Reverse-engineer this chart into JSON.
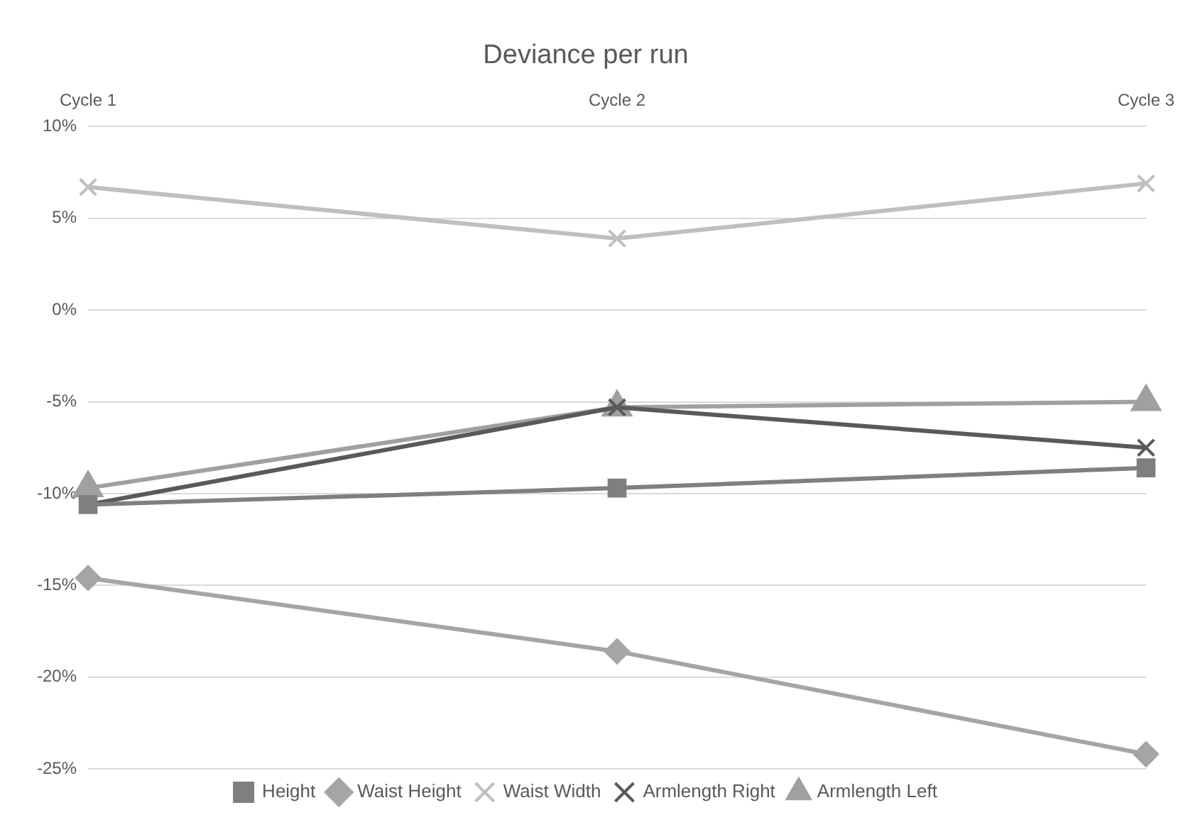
{
  "chart_data": {
    "type": "line",
    "title": "Deviance per run",
    "categories": [
      "Cycle 1",
      "Cycle 2",
      "Cycle 3"
    ],
    "series": [
      {
        "name": "Height",
        "color": "#7f7f7f",
        "marker": "square",
        "values": [
          -10.6,
          -9.7,
          -8.6
        ]
      },
      {
        "name": "Waist Height",
        "color": "#a5a5a5",
        "marker": "diamond",
        "values": [
          -14.6,
          -18.6,
          -24.2
        ]
      },
      {
        "name": "Waist Width",
        "color": "#bfbfbf",
        "marker": "cross",
        "values": [
          6.7,
          3.9,
          6.9
        ]
      },
      {
        "name": "Armlength Right",
        "color": "#595959",
        "marker": "cross",
        "values": [
          -10.6,
          -5.3,
          -7.5
        ]
      },
      {
        "name": "Armlength Left",
        "color": "#a0a0a0",
        "marker": "triangle",
        "values": [
          -9.7,
          -5.3,
          -5.0
        ]
      }
    ],
    "ylim": [
      -25,
      10
    ],
    "yticks": [
      {
        "value": -25,
        "label": "-25%"
      },
      {
        "value": -20,
        "label": "-20%"
      },
      {
        "value": -15,
        "label": "-15%"
      },
      {
        "value": -10,
        "label": "-10%"
      },
      {
        "value": -5,
        "label": "-5%"
      },
      {
        "value": 0,
        "label": "0%"
      },
      {
        "value": 5,
        "label": "5%"
      },
      {
        "value": 10,
        "label": "10%"
      }
    ],
    "grid": "y",
    "legend": "bottom"
  }
}
